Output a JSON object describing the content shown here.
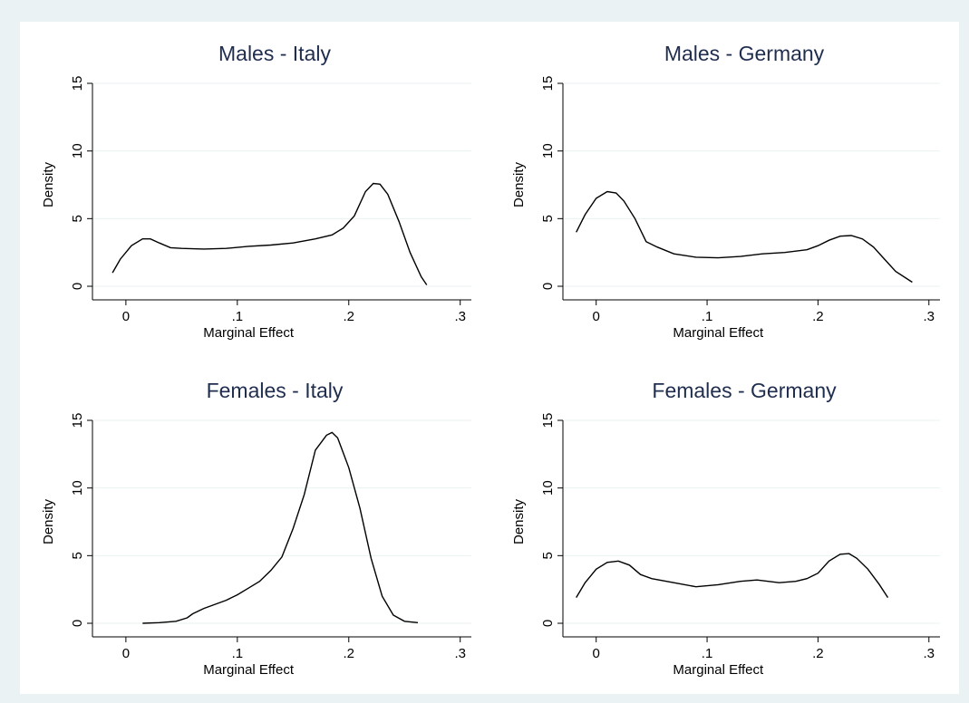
{
  "colors": {
    "background": "#eaf2f3",
    "panel": "#ffffff",
    "title": "#1f2d4e",
    "line": "#000000"
  },
  "chart_data": [
    {
      "type": "line",
      "title": "Males - Italy",
      "xlabel": "Marginal Effect",
      "ylabel": "Density",
      "xlim": [
        -0.03,
        0.31
      ],
      "ylim": [
        0,
        15
      ],
      "xticks": [
        0,
        0.1,
        0.2,
        0.3
      ],
      "xtick_labels": [
        "0",
        ".1",
        ".2",
        ".3"
      ],
      "yticks": [
        0,
        5,
        10,
        15
      ],
      "ytick_labels": [
        "0",
        "5",
        "10",
        "15"
      ],
      "grid": true,
      "series": [
        {
          "x": [
            -0.012,
            -0.005,
            0.005,
            0.015,
            0.022,
            0.03,
            0.04,
            0.05,
            0.07,
            0.09,
            0.11,
            0.13,
            0.15,
            0.17,
            0.185,
            0.195,
            0.205,
            0.215,
            0.222,
            0.228,
            0.235,
            0.245,
            0.255,
            0.265,
            0.27
          ],
          "y": [
            1.0,
            2.0,
            3.0,
            3.5,
            3.5,
            3.2,
            2.85,
            2.8,
            2.75,
            2.8,
            2.95,
            3.05,
            3.2,
            3.5,
            3.8,
            4.3,
            5.2,
            7.0,
            7.6,
            7.55,
            6.8,
            4.8,
            2.5,
            0.7,
            0.1
          ]
        }
      ]
    },
    {
      "type": "line",
      "title": "Males - Germany",
      "xlabel": "Marginal Effect",
      "ylabel": "Density",
      "xlim": [
        -0.03,
        0.31
      ],
      "ylim": [
        0,
        15
      ],
      "xticks": [
        0,
        0.1,
        0.2,
        0.3
      ],
      "xtick_labels": [
        "0",
        ".1",
        ".2",
        ".3"
      ],
      "yticks": [
        0,
        5,
        10,
        15
      ],
      "ytick_labels": [
        "0",
        "5",
        "10",
        "15"
      ],
      "grid": true,
      "series": [
        {
          "x": [
            -0.018,
            -0.01,
            0.0,
            0.01,
            0.018,
            0.025,
            0.035,
            0.045,
            0.055,
            0.07,
            0.09,
            0.11,
            0.13,
            0.15,
            0.17,
            0.19,
            0.2,
            0.21,
            0.22,
            0.23,
            0.24,
            0.25,
            0.26,
            0.27,
            0.285
          ],
          "y": [
            4.0,
            5.3,
            6.5,
            7.0,
            6.9,
            6.3,
            5.0,
            3.3,
            2.9,
            2.4,
            2.15,
            2.1,
            2.2,
            2.4,
            2.5,
            2.7,
            3.0,
            3.4,
            3.7,
            3.75,
            3.5,
            2.9,
            2.0,
            1.1,
            0.3
          ]
        }
      ]
    },
    {
      "type": "line",
      "title": "Females - Italy",
      "xlabel": "Marginal Effect",
      "ylabel": "Density",
      "xlim": [
        -0.03,
        0.31
      ],
      "ylim": [
        0,
        15
      ],
      "xticks": [
        0,
        0.1,
        0.2,
        0.3
      ],
      "xtick_labels": [
        "0",
        ".1",
        ".2",
        ".3"
      ],
      "yticks": [
        0,
        5,
        10,
        15
      ],
      "ytick_labels": [
        "0",
        "5",
        "10",
        "15"
      ],
      "grid": true,
      "series": [
        {
          "x": [
            0.015,
            0.03,
            0.045,
            0.055,
            0.06,
            0.07,
            0.08,
            0.09,
            0.1,
            0.11,
            0.12,
            0.13,
            0.14,
            0.15,
            0.16,
            0.17,
            0.18,
            0.185,
            0.19,
            0.2,
            0.21,
            0.22,
            0.23,
            0.24,
            0.25,
            0.262
          ],
          "y": [
            0.0,
            0.05,
            0.15,
            0.4,
            0.7,
            1.1,
            1.4,
            1.7,
            2.1,
            2.6,
            3.1,
            3.9,
            4.9,
            7.0,
            9.5,
            12.8,
            13.9,
            14.1,
            13.7,
            11.5,
            8.5,
            4.8,
            2.0,
            0.6,
            0.15,
            0.05
          ]
        }
      ]
    },
    {
      "type": "line",
      "title": "Females - Germany",
      "xlabel": "Marginal Effect",
      "ylabel": "Density",
      "xlim": [
        -0.03,
        0.31
      ],
      "ylim": [
        0,
        15
      ],
      "xticks": [
        0,
        0.1,
        0.2,
        0.3
      ],
      "xtick_labels": [
        "0",
        ".1",
        ".2",
        ".3"
      ],
      "yticks": [
        0,
        5,
        10,
        15
      ],
      "ytick_labels": [
        "0",
        "5",
        "10",
        "15"
      ],
      "grid": true,
      "series": [
        {
          "x": [
            -0.018,
            -0.01,
            0.0,
            0.01,
            0.02,
            0.03,
            0.04,
            0.05,
            0.07,
            0.09,
            0.11,
            0.13,
            0.145,
            0.155,
            0.165,
            0.18,
            0.19,
            0.2,
            0.21,
            0.22,
            0.228,
            0.235,
            0.245,
            0.255,
            0.263
          ],
          "y": [
            1.9,
            3.0,
            4.0,
            4.5,
            4.6,
            4.3,
            3.6,
            3.3,
            3.0,
            2.7,
            2.85,
            3.1,
            3.2,
            3.1,
            3.0,
            3.1,
            3.3,
            3.7,
            4.6,
            5.1,
            5.15,
            4.8,
            4.0,
            2.9,
            1.9
          ]
        }
      ]
    }
  ]
}
